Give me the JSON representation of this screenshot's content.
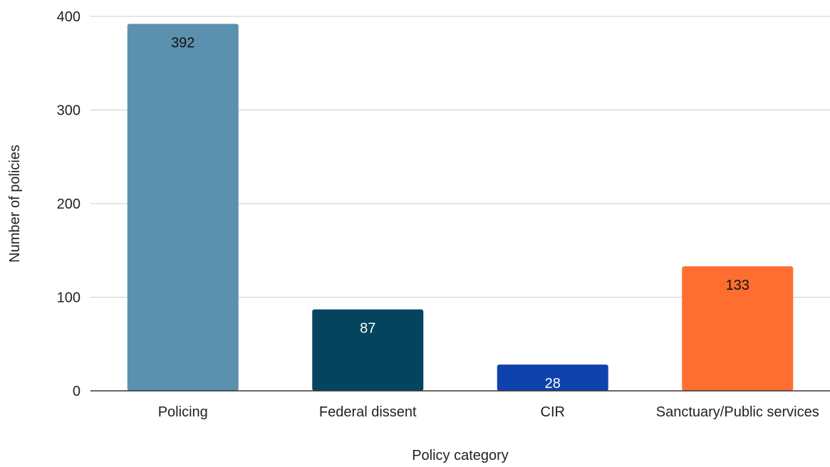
{
  "chart_data": {
    "type": "bar",
    "title": "",
    "xlabel": "Policy category",
    "ylabel": "Number of policies",
    "ylim": [
      0,
      400
    ],
    "yticks": [
      0,
      100,
      200,
      300,
      400
    ],
    "grid": true,
    "legend": "none",
    "categories": [
      "Policing",
      "Federal dissent",
      "CIR",
      "Sanctuary/Public services"
    ],
    "values": [
      392,
      87,
      28,
      133
    ],
    "colors": [
      "#5b91ae",
      "#05445e",
      "#1042ad",
      "#ff6e31"
    ],
    "label_colors": [
      "#111111",
      "#ffffff",
      "#ffffff",
      "#111111"
    ]
  }
}
